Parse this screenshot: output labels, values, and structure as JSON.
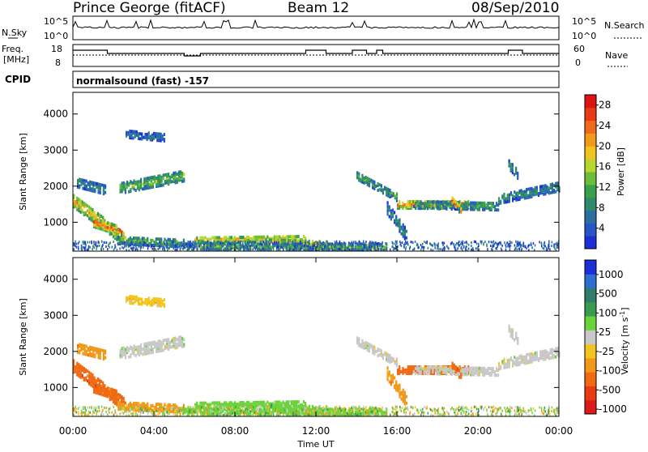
{
  "header": {
    "station": "Prince George (fitACF)",
    "beam": "Beam 12",
    "date": "08/Sep/2010"
  },
  "strip": {
    "nsky_label": "N.Sky",
    "nsearch_label": "N.Search",
    "freq_label_1": "Freq.",
    "freq_label_2": "[MHz]",
    "nave_label": "Nave",
    "cpid_label": "CPID",
    "cpid_value": "normalsound (fast) -157",
    "nsky_ticks": [
      "10^5",
      "10^0"
    ],
    "nsearch_ticks": [
      "10^5",
      "10^0"
    ],
    "freq_ticks": [
      "18",
      "8"
    ],
    "nave_ticks": [
      "60",
      "0"
    ]
  },
  "colors": {
    "power": [
      "#1a2fd6",
      "#2456c8",
      "#2b6ea0",
      "#2f8a6b",
      "#3aa14a",
      "#6bbd3a",
      "#b8d62b",
      "#f0c420",
      "#f39a1c",
      "#ef6a1a",
      "#e83a17",
      "#dc1414"
    ],
    "velocity": [
      "#1a2fd6",
      "#2c6fcf",
      "#2f7d6a",
      "#3a9a4d",
      "#6bd33a",
      "#c8c8c8",
      "#f2c420",
      "#f29818",
      "#ef6a12",
      "#e83b15",
      "#dc1a1a"
    ]
  },
  "chart_data": [
    {
      "type": "heatmap",
      "name": "power",
      "ylabel": "Slant Range [km]",
      "xlabel": "Time UT",
      "x_ticks": [
        "00:00",
        "04:00",
        "08:00",
        "12:00",
        "16:00",
        "20:00",
        "00:00"
      ],
      "x_range_hours": [
        0,
        24
      ],
      "y_ticks": [
        1000,
        2000,
        3000,
        4000
      ],
      "ylim": [
        200,
        4600
      ],
      "colorbar_label": "Power [dB]",
      "colorbar_ticks": [
        4,
        8,
        12,
        16,
        20,
        24,
        28
      ],
      "colorbar_range": [
        0,
        30
      ]
    },
    {
      "type": "heatmap",
      "name": "velocity",
      "ylabel": "Slant Range [km]",
      "xlabel": "Time UT",
      "x_ticks": [
        "00:00",
        "04:00",
        "08:00",
        "12:00",
        "16:00",
        "20:00",
        "00:00"
      ],
      "x_range_hours": [
        0,
        24
      ],
      "y_ticks": [
        1000,
        2000,
        3000,
        4000
      ],
      "ylim": [
        200,
        4600
      ],
      "colorbar_label": "Velocity [m s^-1]",
      "colorbar_ticks": [
        "1000",
        "500",
        "100",
        "25",
        "-25",
        "-100",
        "-500",
        "-1000"
      ]
    }
  ]
}
